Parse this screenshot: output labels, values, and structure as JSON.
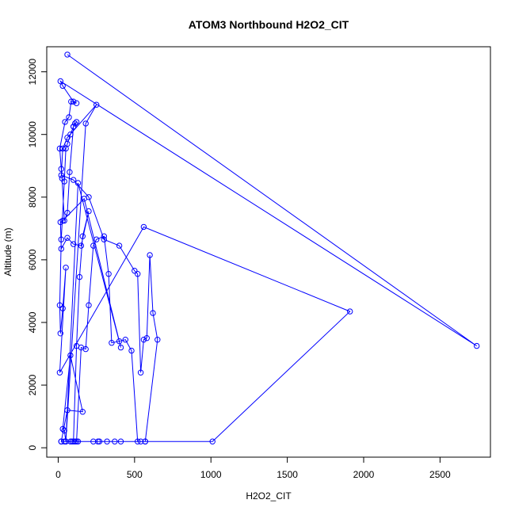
{
  "chart_data": {
    "type": "scatter",
    "title": "ATOM3 Northbound H2O2_CIT",
    "xlabel": "H2O2_CIT",
    "ylabel": "Altitude (m)",
    "xlim": [
      -75,
      2830
    ],
    "ylim": [
      -300,
      12800
    ],
    "xticks": [
      0,
      500,
      1000,
      1500,
      2000,
      2500
    ],
    "yticks": [
      0,
      2000,
      4000,
      6000,
      8000,
      10000,
      12000
    ],
    "grid": false,
    "legend": "none",
    "color": "#0000ff",
    "connected": true,
    "series": [
      {
        "x": [
          60,
          2740,
          15,
          30,
          100,
          120,
          85,
          70,
          45,
          10,
          20,
          25,
          40,
          60,
          75,
          100,
          110,
          120,
          100,
          80,
          60,
          50,
          40,
          20,
          10,
          15,
          30,
          50,
          10,
          560,
          1910,
          1010,
          20,
          60,
          160,
          80,
          30,
          40,
          50,
          100,
          120,
          140,
          160,
          200,
          150,
          100,
          60,
          20,
          15,
          30,
          170,
          410,
          130,
          50,
          180,
          250,
          60,
          30,
          20,
          100,
          200,
          300,
          400,
          500,
          520,
          540,
          560,
          580,
          600,
          620,
          650,
          570,
          520,
          480,
          440,
          400,
          350,
          330,
          300,
          250,
          230,
          200,
          180,
          150,
          120,
          80,
          40,
          20,
          260,
          320,
          410,
          110,
          540,
          570,
          270,
          370,
          130,
          230,
          90
        ],
        "y": [
          12550,
          3250,
          11700,
          11550,
          11050,
          11000,
          11050,
          10550,
          10400,
          9550,
          8900,
          8600,
          7250,
          7500,
          8800,
          10250,
          10350,
          10400,
          10250,
          10000,
          9700,
          9550,
          8500,
          6650,
          4550,
          3650,
          4450,
          5750,
          2400,
          7050,
          4350,
          200,
          200,
          1200,
          1150,
          2950,
          600,
          550,
          200,
          200,
          3250,
          5450,
          6750,
          7550,
          6450,
          6500,
          6700,
          6350,
          7200,
          7250,
          7950,
          3200,
          8450,
          200,
          10350,
          10950,
          9900,
          9550,
          8700,
          8550,
          8000,
          6650,
          6450,
          5650,
          5550,
          2400,
          3450,
          3500,
          6150,
          4300,
          3450,
          200,
          200,
          3100,
          3450,
          3400,
          3350,
          5550,
          6750,
          6650,
          6450,
          4550,
          3150,
          3200,
          200,
          200,
          200,
          200,
          200,
          200,
          200,
          200,
          200,
          200,
          200,
          200,
          200,
          200,
          200
        ]
      }
    ]
  }
}
